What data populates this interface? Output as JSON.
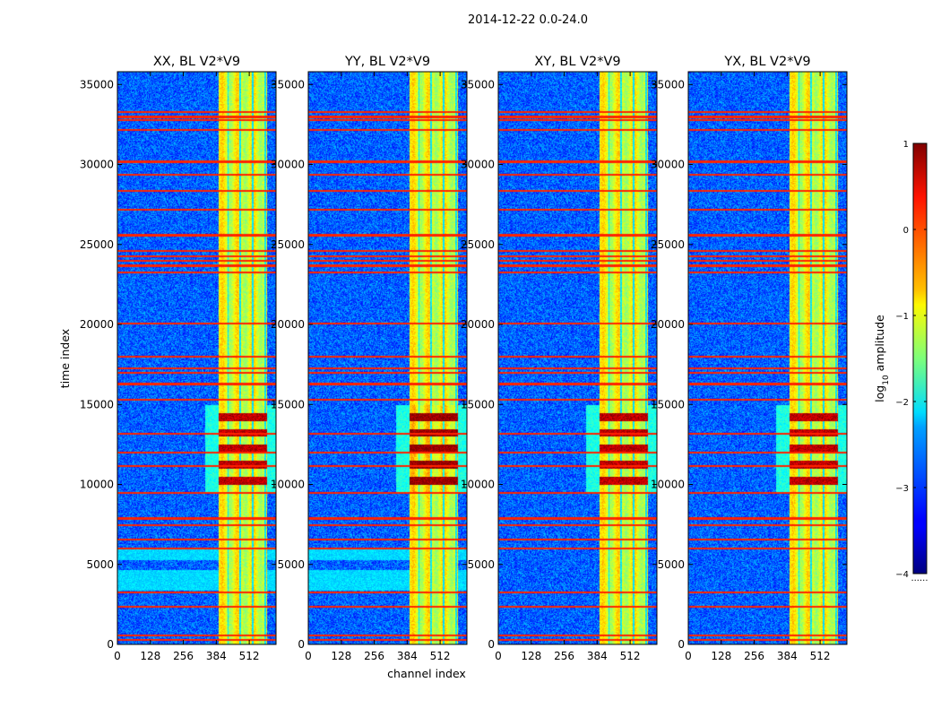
{
  "figure": {
    "suptitle": "2014-12-22 0.0-24.0"
  },
  "chart_data": {
    "type": "heatmap",
    "title": "2014-12-22 0.0-24.0",
    "xlabel": "channel index",
    "ylabel": "time index",
    "xlim": [
      0,
      616
    ],
    "ylim": [
      0,
      35800
    ],
    "xticks": [
      0,
      128,
      256,
      384,
      512
    ],
    "yticks": [
      0,
      5000,
      10000,
      15000,
      20000,
      25000,
      30000,
      35000
    ],
    "colormap": "jet",
    "panels": [
      {
        "title": "XX, BL V2*V9",
        "pol": "XX"
      },
      {
        "title": "YY, BL V2*V9",
        "pol": "YY"
      },
      {
        "title": "XY, BL V2*V9",
        "pol": "XY"
      },
      {
        "title": "YX, BL V2*V9",
        "pol": "YX"
      }
    ],
    "colorbar": {
      "label": "log10 amplitude",
      "label_main": "log",
      "label_sub": "10",
      "label_rest": " amplitude",
      "range": [
        -4,
        1
      ],
      "ticks": [
        1,
        0,
        -1,
        -2,
        -3,
        -4
      ],
      "tick_labels": [
        "1",
        "0",
        "−1",
        "−2",
        "−3",
        "−4"
      ],
      "under_marker": "......"
    },
    "features": {
      "strong_band_channels": [
        390,
        580
      ],
      "background_level": -2.9,
      "band_level": -1.0,
      "flagged_level": 0.2,
      "flagged_rows": [
        300,
        600,
        2400,
        3300,
        6000,
        6600,
        7500,
        7900,
        9500,
        11200,
        12000,
        13200,
        15300,
        16300,
        17000,
        17300,
        18000,
        20100,
        23300,
        23700,
        24000,
        24300,
        24600,
        25600,
        27200,
        28400,
        29400,
        30200,
        32200,
        32800,
        33000,
        33300
      ],
      "hot_time_range": [
        9500,
        15000
      ],
      "hot_level": 0.7
    }
  }
}
